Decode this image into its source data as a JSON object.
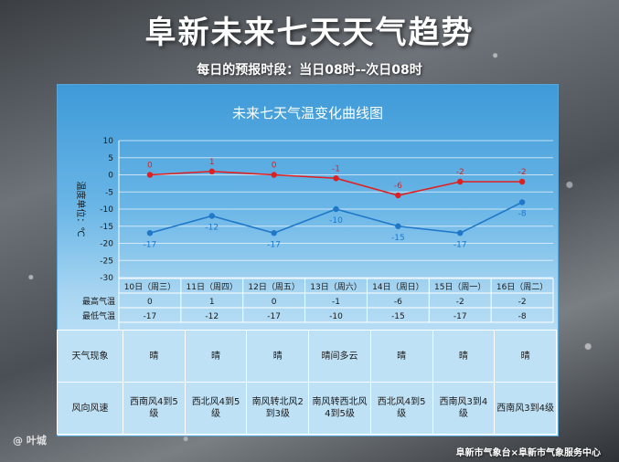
{
  "header": {
    "title": "阜新未来七天天气趋势",
    "subtitle": "每日的预报时段：当日08时--次日08时"
  },
  "chart_data": {
    "type": "line",
    "title": "未来七天气温变化曲线图",
    "ylabel": "温度单位：℃",
    "ylim": [
      -30,
      10
    ],
    "yticks": [
      10,
      5,
      0,
      -5,
      -10,
      -15,
      -20,
      -25,
      -30
    ],
    "grid": true,
    "categories": [
      "10日（周三）",
      "11日（周四）",
      "12日（周五）",
      "13日（周六）",
      "14日（周日）",
      "15日（周一）",
      "16日（周二）"
    ],
    "series": [
      {
        "name": "最高气温",
        "color": "#e02020",
        "values": [
          0,
          1,
          0,
          -1,
          -6,
          -2,
          -2
        ]
      },
      {
        "name": "最低气温",
        "color": "#1f78c8",
        "values": [
          -17,
          -12,
          -17,
          -10,
          -15,
          -17,
          -8
        ]
      }
    ]
  },
  "table": {
    "weather_label": "天气现象",
    "weather": [
      "晴",
      "晴",
      "晴",
      "晴间多云",
      "晴",
      "晴",
      "晴"
    ],
    "wind_label": "风向风速",
    "wind": [
      "西南风4到5级",
      "西北风4到5级",
      "南风转北风2到3级",
      "南风转西北风4到5级",
      "西北风4到5级",
      "西南风3到4级",
      "西南风3到4级"
    ]
  },
  "footer": {
    "credit": "阜新市气象台×阜新市气象服务中心",
    "watermark": "@ 叶城"
  }
}
